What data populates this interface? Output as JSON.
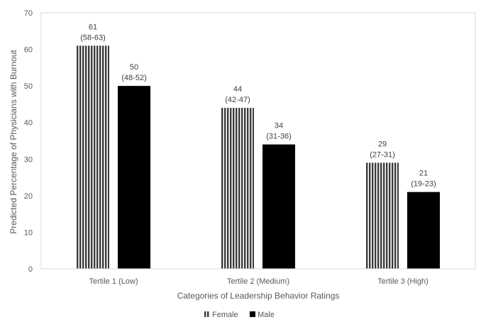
{
  "chart_data": {
    "type": "bar",
    "title": "",
    "xlabel": "Categories of Leadership Behavior Ratings",
    "ylabel": "Predicted Percentage of Physicians with Burnout",
    "ylim": [
      0,
      70
    ],
    "yticks": [
      0,
      10,
      20,
      30,
      40,
      50,
      60,
      70
    ],
    "categories": [
      "Tertile 1 (Low)",
      "Tertile 2 (Medium)",
      "Tertile 3 (High)"
    ],
    "series": [
      {
        "name": "Female",
        "pattern": "vertical-stripes",
        "color": "#3a3a3a",
        "values": [
          61,
          44,
          29
        ],
        "value_labels": [
          "61",
          "44",
          "29"
        ],
        "ci_labels": [
          "(58-63)",
          "(42-47)",
          "(27-31)"
        ]
      },
      {
        "name": "Male",
        "pattern": "solid",
        "color": "#000000",
        "values": [
          50,
          34,
          21
        ],
        "value_labels": [
          "50",
          "34",
          "21"
        ],
        "ci_labels": [
          "(48-52)",
          "(31-36)",
          "(19-23)"
        ]
      }
    ],
    "grid": false,
    "legend_position": "bottom-center"
  }
}
